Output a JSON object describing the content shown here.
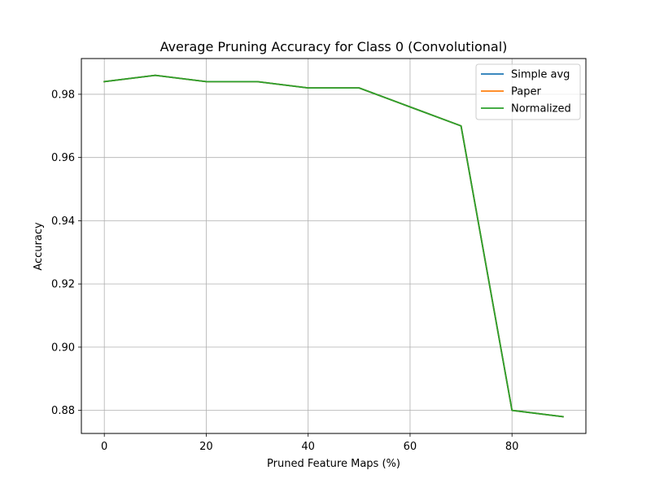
{
  "chart_data": {
    "type": "line",
    "title": "Average Pruning Accuracy for Class 0 (Convolutional)",
    "xlabel": "Pruned Feature Maps (%)",
    "ylabel": "Accuracy",
    "xlim": [
      -4.5,
      94.5
    ],
    "ylim": [
      0.8727,
      0.9913
    ],
    "xticks": [
      0,
      20,
      40,
      60,
      80
    ],
    "yticks": [
      0.88,
      0.9,
      0.92,
      0.94,
      0.96,
      0.98
    ],
    "xtick_labels": [
      "0",
      "20",
      "40",
      "60",
      "80"
    ],
    "ytick_labels": [
      "0.88",
      "0.90",
      "0.92",
      "0.94",
      "0.96",
      "0.98"
    ],
    "grid": true,
    "legend_position": "top-right",
    "x": [
      0,
      10,
      20,
      30,
      40,
      50,
      60,
      70,
      80,
      90
    ],
    "series": [
      {
        "name": "Simple avg",
        "color": "#1f77b4",
        "values": [
          0.984,
          0.986,
          0.984,
          0.984,
          0.982,
          0.982,
          0.976,
          0.97,
          0.88,
          0.878
        ]
      },
      {
        "name": "Paper",
        "color": "#ff7f0e",
        "values": [
          0.984,
          0.986,
          0.984,
          0.984,
          0.982,
          0.982,
          0.976,
          0.97,
          0.88,
          0.878
        ]
      },
      {
        "name": "Normalized",
        "color": "#2ca02c",
        "values": [
          0.984,
          0.986,
          0.984,
          0.984,
          0.982,
          0.982,
          0.976,
          0.97,
          0.88,
          0.878
        ]
      }
    ]
  }
}
